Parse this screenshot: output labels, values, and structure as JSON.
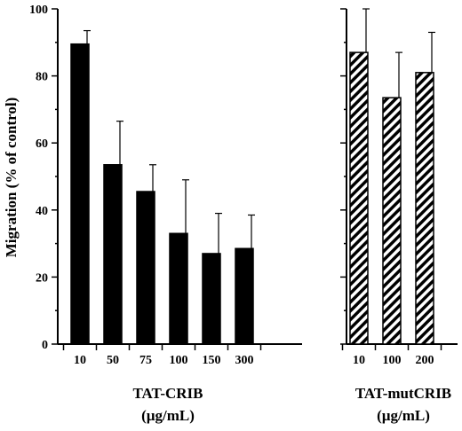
{
  "chart_data": {
    "type": "bar",
    "ylabel": "Migration (% of control)",
    "ylim": [
      0,
      100
    ],
    "yticks": [
      0,
      20,
      40,
      60,
      80,
      100
    ],
    "groups": [
      {
        "label_line1": "TAT-CRIB",
        "label_line2": "(µg/mL)",
        "fill": "solid",
        "color": "#000000",
        "categories": [
          "10",
          "50",
          "75",
          "100",
          "150",
          "300"
        ],
        "values": [
          89.5,
          53.5,
          45.5,
          33,
          27,
          28.5
        ],
        "errors": [
          4,
          13,
          8,
          16,
          12,
          10
        ]
      },
      {
        "label_line1": "TAT-mutCRIB",
        "label_line2": "(µg/mL)",
        "fill": "hatched",
        "color": "#000000",
        "categories": [
          "10",
          "100",
          "200"
        ],
        "values": [
          87,
          73.5,
          81
        ],
        "errors": [
          13,
          13.5,
          12
        ]
      }
    ]
  }
}
